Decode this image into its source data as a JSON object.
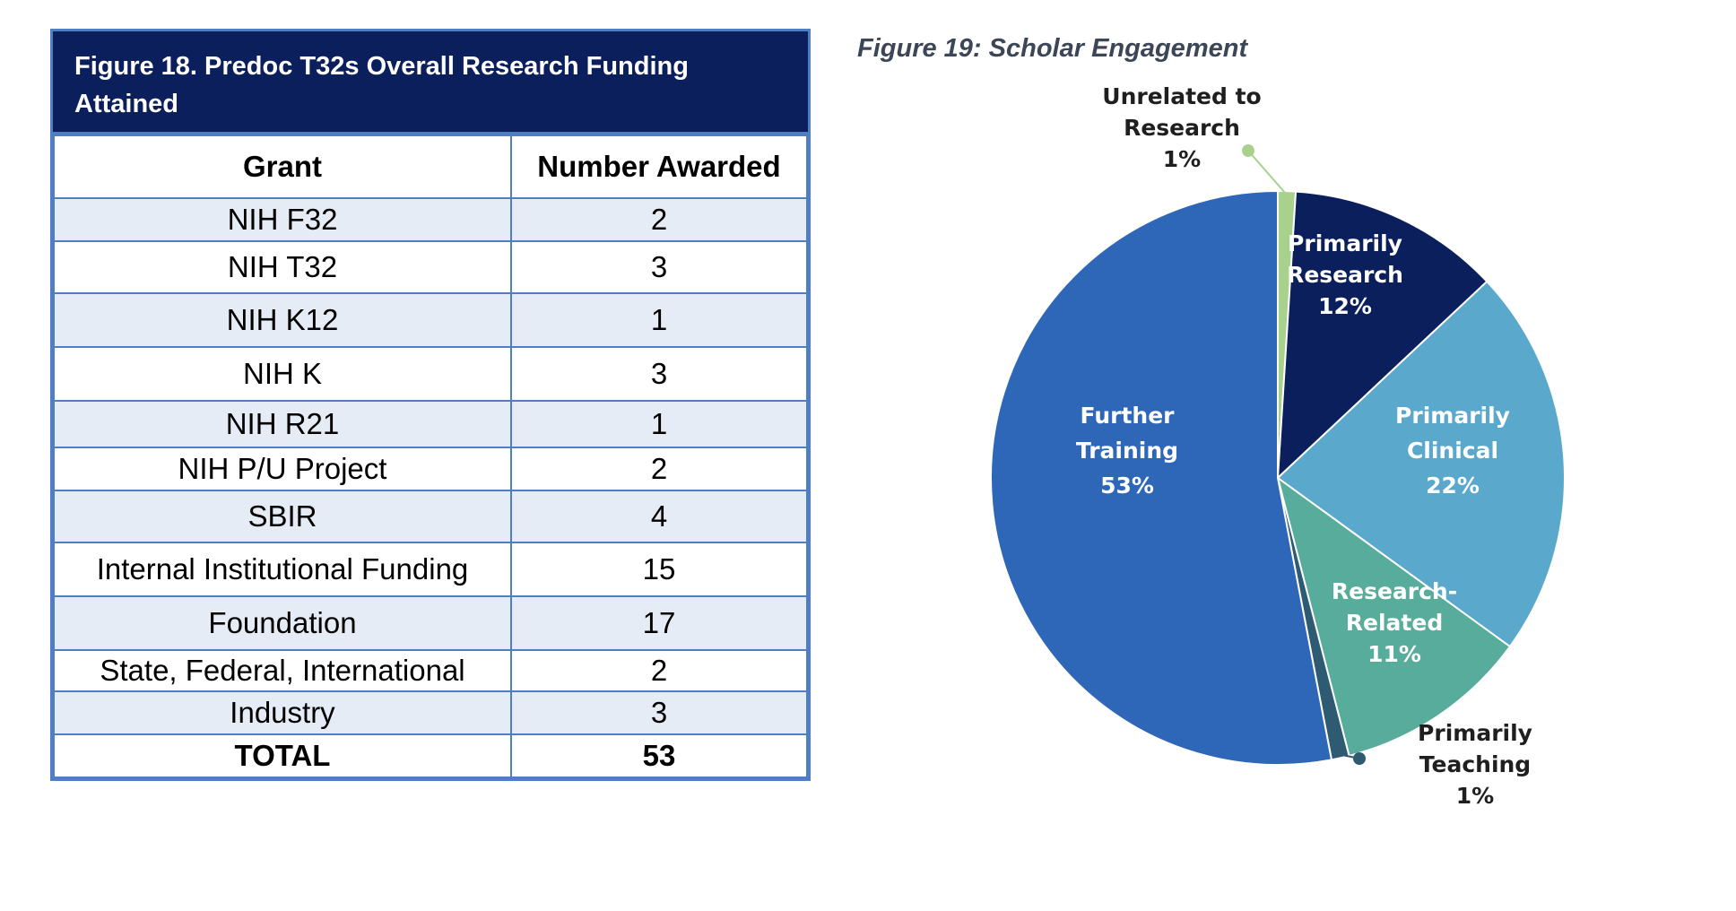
{
  "table": {
    "title": "Figure 18. Predoc T32s Overall Research Funding Attained",
    "headers": [
      "Grant",
      "Number Awarded"
    ],
    "rows": [
      {
        "grant": "NIH F32",
        "number": "2"
      },
      {
        "grant": "NIH T32",
        "number": "3"
      },
      {
        "grant": "NIH K12",
        "number": "1"
      },
      {
        "grant": "NIH K",
        "number": "3"
      },
      {
        "grant": "NIH R21",
        "number": "1"
      },
      {
        "grant": "NIH P/U Project",
        "number": "2"
      },
      {
        "grant": "SBIR",
        "number": "4"
      },
      {
        "grant": "Internal Institutional Funding",
        "number": "15"
      },
      {
        "grant": "Foundation",
        "number": "17"
      },
      {
        "grant": "State, Federal, International",
        "number": "2"
      },
      {
        "grant": "Industry",
        "number": "3"
      }
    ],
    "total": {
      "grant": "TOTAL",
      "number": "53"
    }
  },
  "colors": {
    "table_header_bg": "#0b1f5c",
    "table_border": "#4f7fc2",
    "table_stripe": "#e6ecf6"
  },
  "chart_data": {
    "type": "pie",
    "title": "Figure 19: Scholar Engagement",
    "slices": [
      {
        "label": "Unrelated to Research",
        "value": 1,
        "display": "1%",
        "color": "#a9d18e"
      },
      {
        "label": "Primarily Research",
        "value": 12,
        "display": "12%",
        "color": "#0b1f5c"
      },
      {
        "label": "Primarily Clinical",
        "value": 22,
        "display": "22%",
        "color": "#5aa8cb"
      },
      {
        "label": "Research-Related",
        "value": 11,
        "display": "11%",
        "color": "#58ac9b"
      },
      {
        "label": "Primarily Teaching",
        "value": 1,
        "display": "1%",
        "color": "#2e5a72"
      },
      {
        "label": "Further Training",
        "value": 53,
        "display": "53%",
        "color": "#2e67b8"
      }
    ]
  }
}
